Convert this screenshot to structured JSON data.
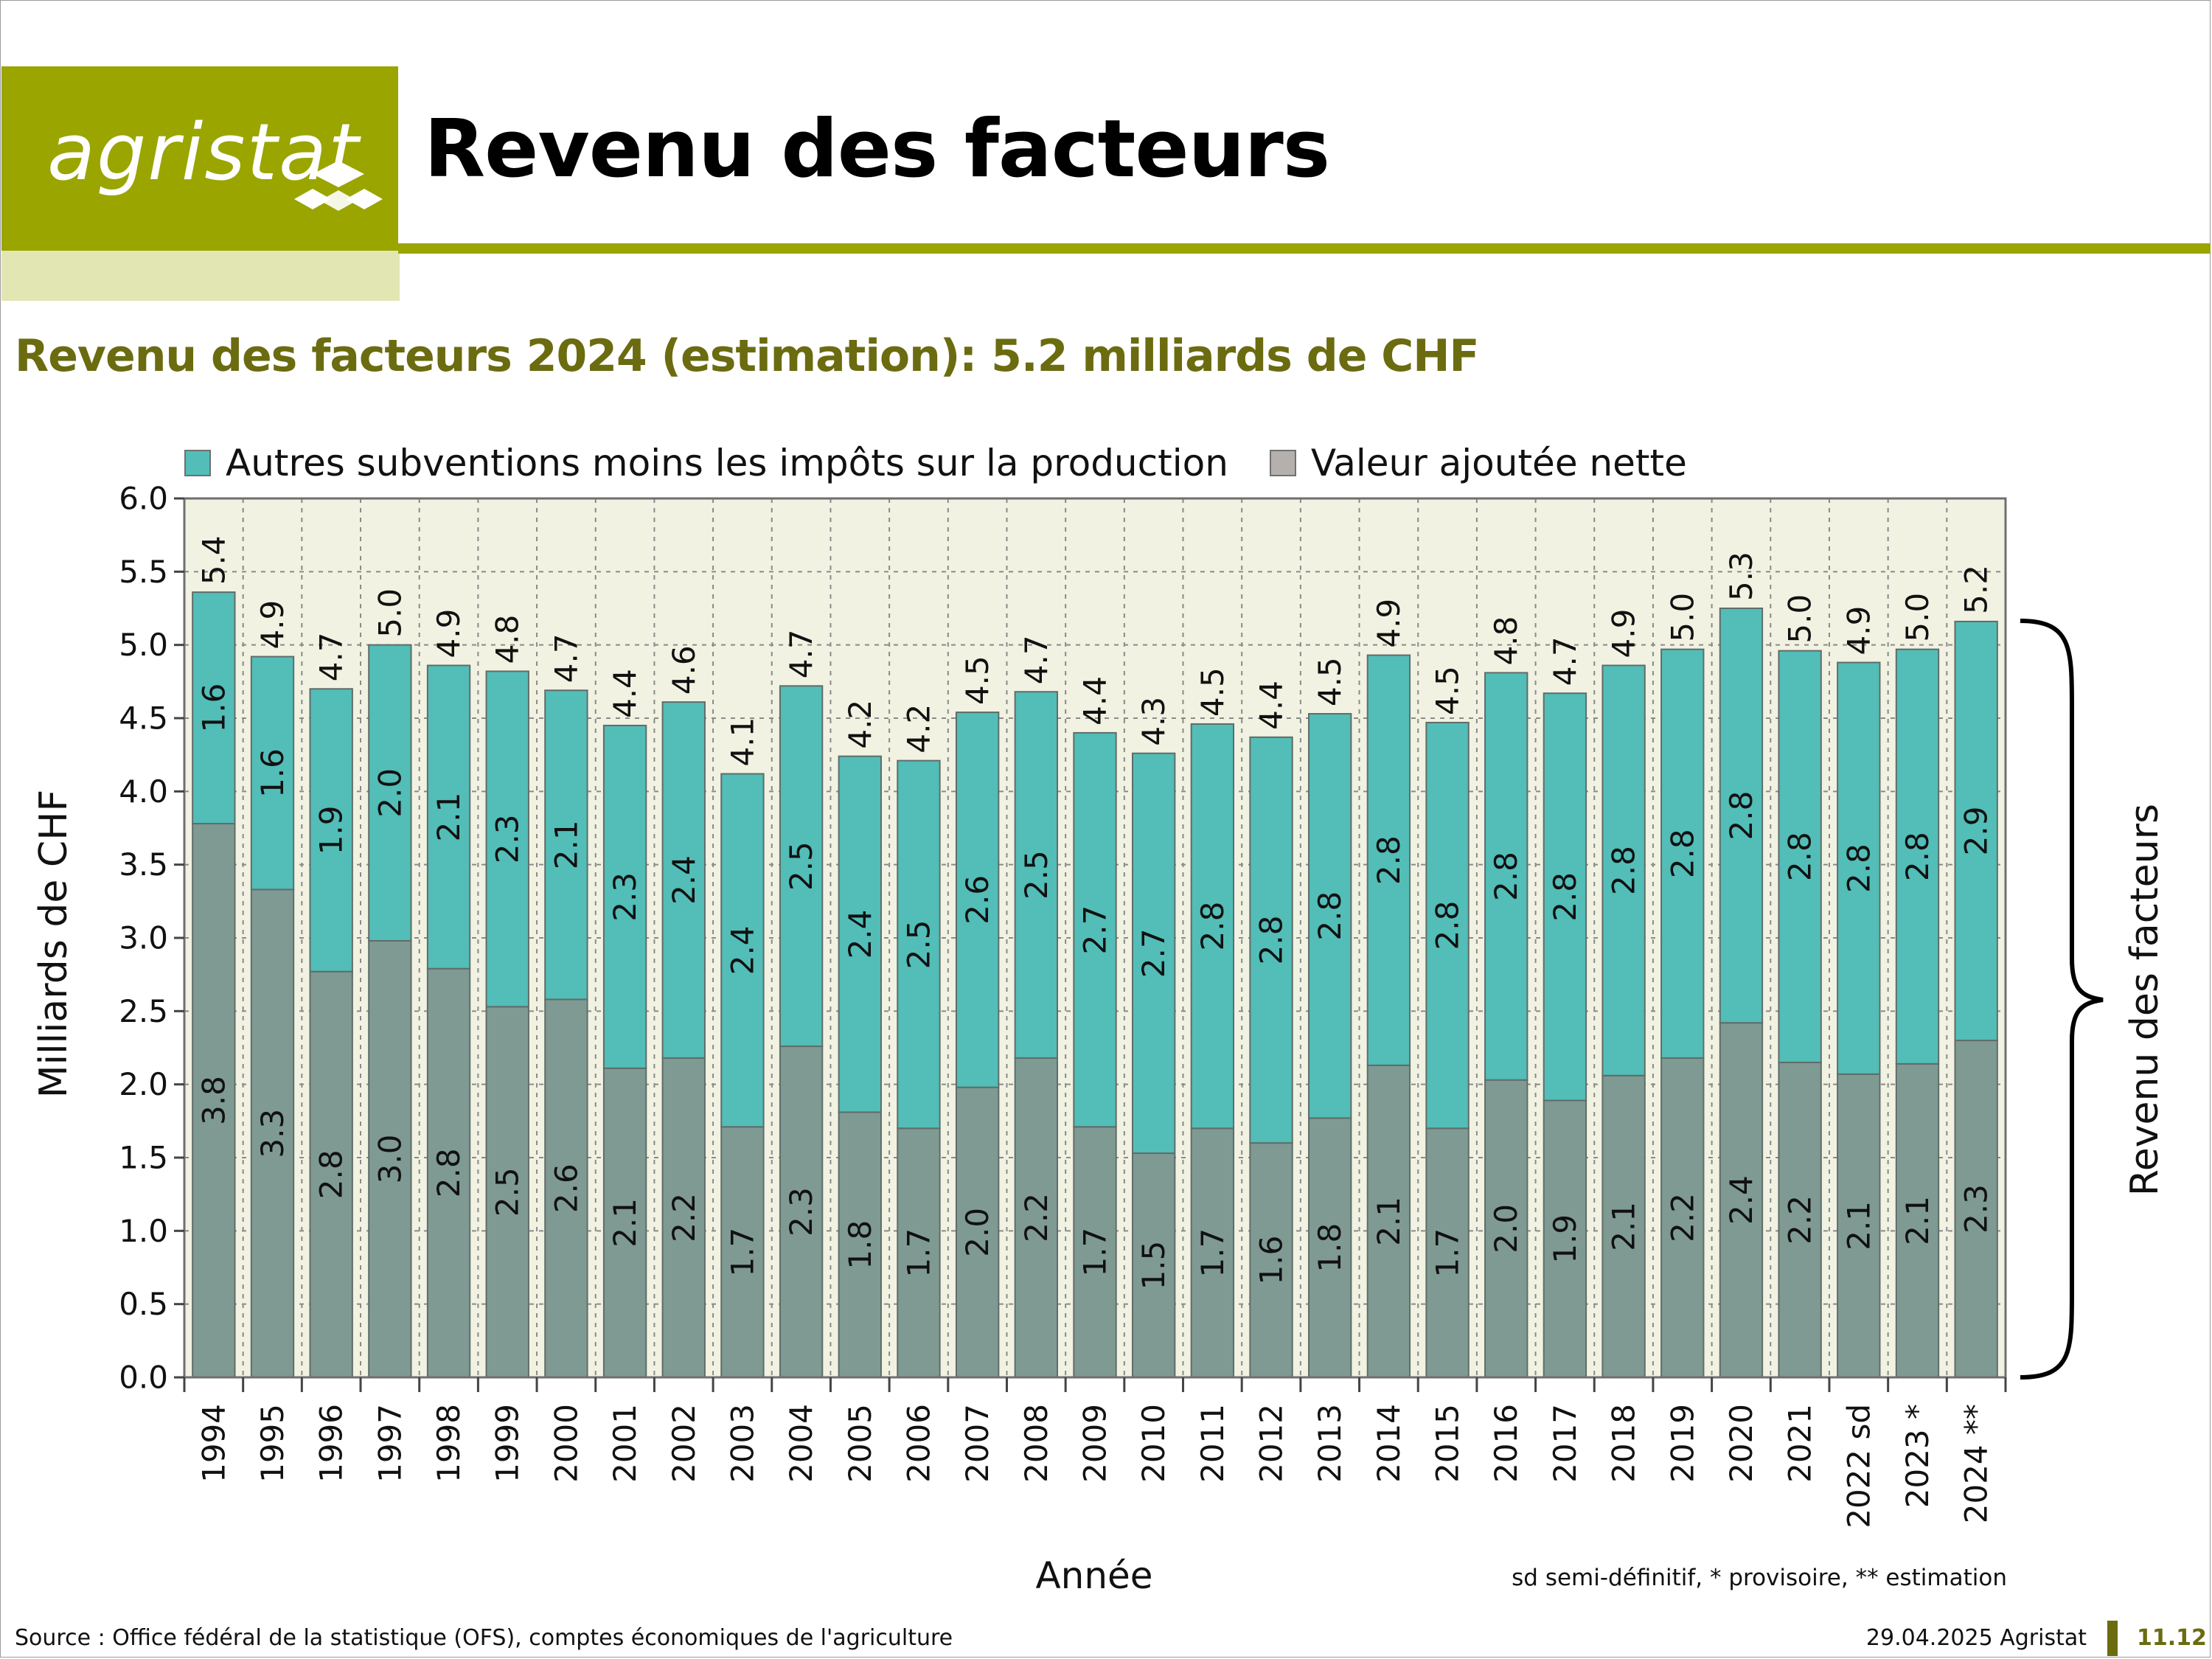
{
  "header": {
    "logo_text": "agristat",
    "title": "Revenu des facteurs"
  },
  "subtitle": "Revenu des facteurs 2024 (estimation): 5.2 milliards de CHF",
  "colors": {
    "brand": "#9aa500",
    "brand_light": "#e2e6b3",
    "subtitle": "#6b6b10",
    "plot_background": "#f2f2e2",
    "series_top": "#53bdb8",
    "series_bottom": "#7f9a93",
    "legend_bottom_swatch": "#b5b0ad"
  },
  "chart_data": {
    "type": "bar",
    "stacked": true,
    "ylabel": "Milliards de CHF",
    "xlabel": "Année",
    "ylim": [
      0,
      6
    ],
    "yticks": [
      "0.0",
      "0.5",
      "1.0",
      "1.5",
      "2.0",
      "2.5",
      "3.0",
      "3.5",
      "4.0",
      "4.5",
      "5.0",
      "5.5",
      "6.0"
    ],
    "grid": true,
    "legend_position": "top",
    "categories": [
      "1994",
      "1995",
      "1996",
      "1997",
      "1998",
      "1999",
      "2000",
      "2001",
      "2002",
      "2003",
      "2004",
      "2005",
      "2006",
      "2007",
      "2008",
      "2009",
      "2010",
      "2011",
      "2012",
      "2013",
      "2014",
      "2015",
      "2016",
      "2017",
      "2018",
      "2019",
      "2020",
      "2021",
      "2022 sd",
      "2023 *",
      "2024 **"
    ],
    "series": [
      {
        "name": "Valeur ajoutée nette",
        "values": [
          3.78,
          3.33,
          2.77,
          2.98,
          2.79,
          2.53,
          2.58,
          2.11,
          2.18,
          1.71,
          2.26,
          1.81,
          1.7,
          1.98,
          2.18,
          1.71,
          1.53,
          1.7,
          1.6,
          1.77,
          2.13,
          1.7,
          2.03,
          1.89,
          2.06,
          2.18,
          2.42,
          2.15,
          2.07,
          2.14,
          2.3
        ],
        "labels": [
          "3.8",
          "3.3",
          "2.8",
          "3.0",
          "2.8",
          "2.5",
          "2.6",
          "2.1",
          "2.2",
          "1.7",
          "2.3",
          "1.8",
          "1.7",
          "2.0",
          "2.2",
          "1.7",
          "1.5",
          "1.7",
          "1.6",
          "1.8",
          "2.1",
          "1.7",
          "2.0",
          "1.9",
          "2.1",
          "2.2",
          "2.4",
          "2.2",
          "2.1",
          "2.1",
          "2.3"
        ]
      },
      {
        "name": "Autres subventions moins les impôts sur la production",
        "values": [
          1.58,
          1.59,
          1.93,
          2.02,
          2.07,
          2.29,
          2.11,
          2.34,
          2.43,
          2.41,
          2.46,
          2.43,
          2.51,
          2.56,
          2.5,
          2.69,
          2.73,
          2.76,
          2.77,
          2.76,
          2.8,
          2.77,
          2.78,
          2.78,
          2.8,
          2.79,
          2.83,
          2.81,
          2.81,
          2.83,
          2.86
        ],
        "labels": [
          "1.6",
          "1.6",
          "1.9",
          "2.0",
          "2.1",
          "2.3",
          "2.1",
          "2.3",
          "2.4",
          "2.4",
          "2.5",
          "2.4",
          "2.5",
          "2.6",
          "2.5",
          "2.7",
          "2.7",
          "2.8",
          "2.8",
          "2.8",
          "2.8",
          "2.8",
          "2.8",
          "2.8",
          "2.8",
          "2.8",
          "2.8",
          "2.8",
          "2.8",
          "2.8",
          "2.9"
        ]
      }
    ],
    "totals": [
      5.36,
      4.92,
      4.7,
      5.0,
      4.86,
      4.82,
      4.69,
      4.45,
      4.61,
      4.12,
      4.72,
      4.24,
      4.21,
      4.54,
      4.68,
      4.4,
      4.26,
      4.46,
      4.37,
      4.53,
      4.93,
      4.47,
      4.81,
      4.67,
      4.86,
      4.97,
      5.25,
      4.96,
      4.88,
      4.97,
      5.16
    ],
    "total_labels": [
      "5.4",
      "4.9",
      "4.7",
      "5.0",
      "4.9",
      "4.8",
      "4.7",
      "4.4",
      "4.6",
      "4.1",
      "4.7",
      "4.2",
      "4.2",
      "4.5",
      "4.7",
      "4.4",
      "4.3",
      "4.5",
      "4.4",
      "4.5",
      "4.9",
      "4.5",
      "4.8",
      "4.7",
      "4.9",
      "5.0",
      "5.3",
      "5.0",
      "4.9",
      "5.0",
      "5.2"
    ],
    "brace_label": "Revenu des facteurs"
  },
  "footnote": "sd semi-définitif, * provisoire, ** estimation",
  "footer": {
    "source": "Source : Office fédéral de la statistique (OFS), comptes économiques de l'agriculture",
    "date": "29.04.2025 Agristat",
    "page": "11.12"
  }
}
